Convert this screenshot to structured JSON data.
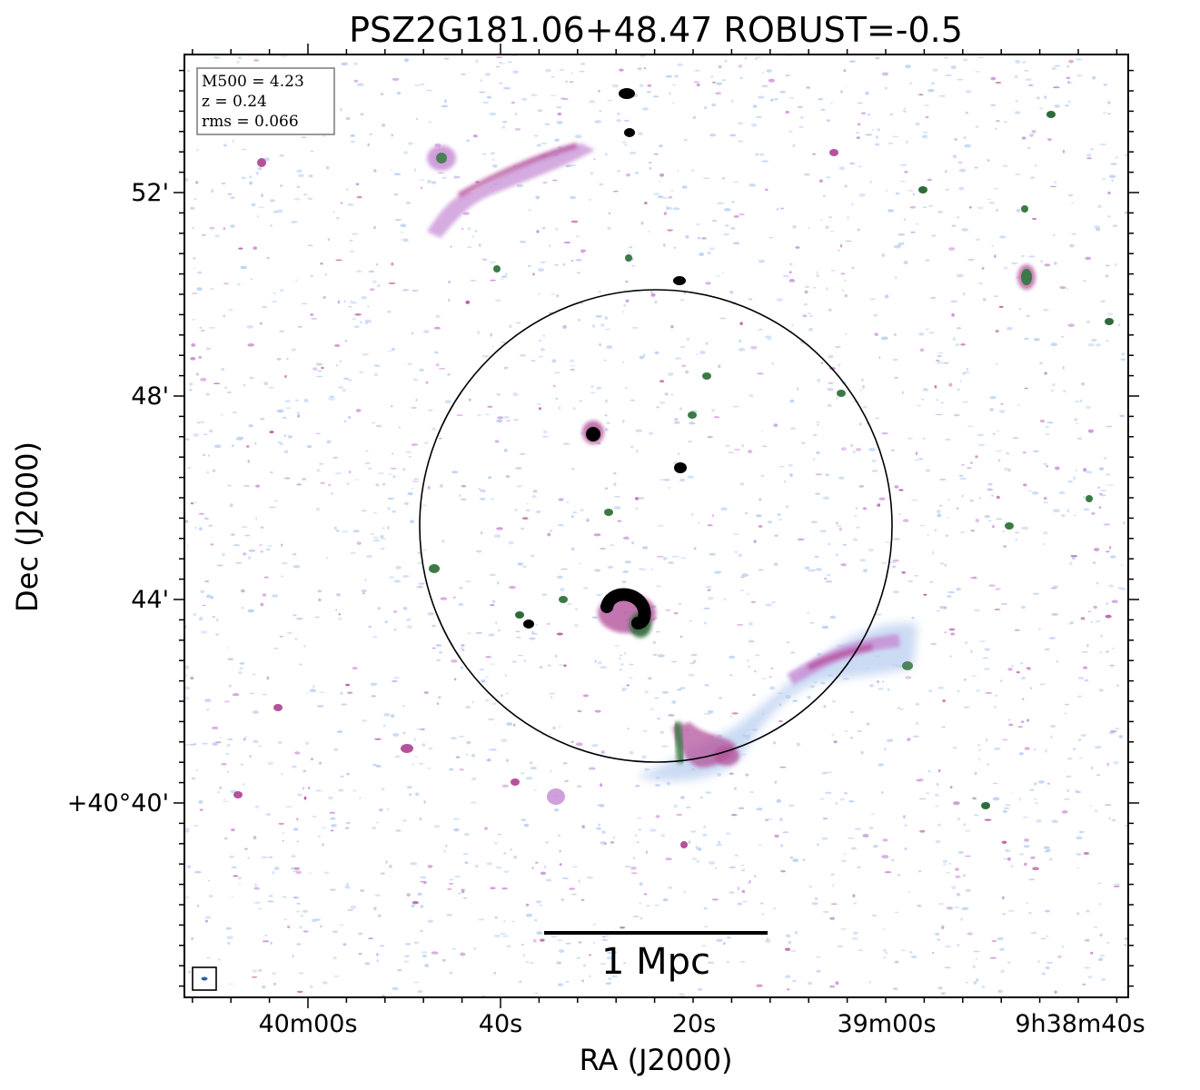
{
  "title": "PSZ2G181.06+48.47 ROBUST=-0.5",
  "info_box": {
    "mass": "M500 = 4.23",
    "redshift": "z = 0.24",
    "rms": "rms = 0.066"
  },
  "axes": {
    "x_title": "RA (J2000)",
    "y_title": "Dec (J2000)",
    "x_ticks": [
      "40m00s",
      "40s",
      "20s",
      "39m00s",
      "9h38m40s"
    ],
    "y_ticks": [
      "52'",
      "48'",
      "44'",
      "+40°40'"
    ]
  },
  "scale_bar": {
    "label": "1 Mpc"
  },
  "colors": {
    "faint_emission": "#b9cff0",
    "mid_emission": "#c78fd6",
    "strong_emission": "#b4539b",
    "core_emission": "#2f6b3a",
    "peak_emission": "#000000",
    "frame": "#000000",
    "info_box_border": "#808080"
  },
  "elements": {
    "r500_circle": "R500 circle",
    "beam_marker": "beam"
  }
}
